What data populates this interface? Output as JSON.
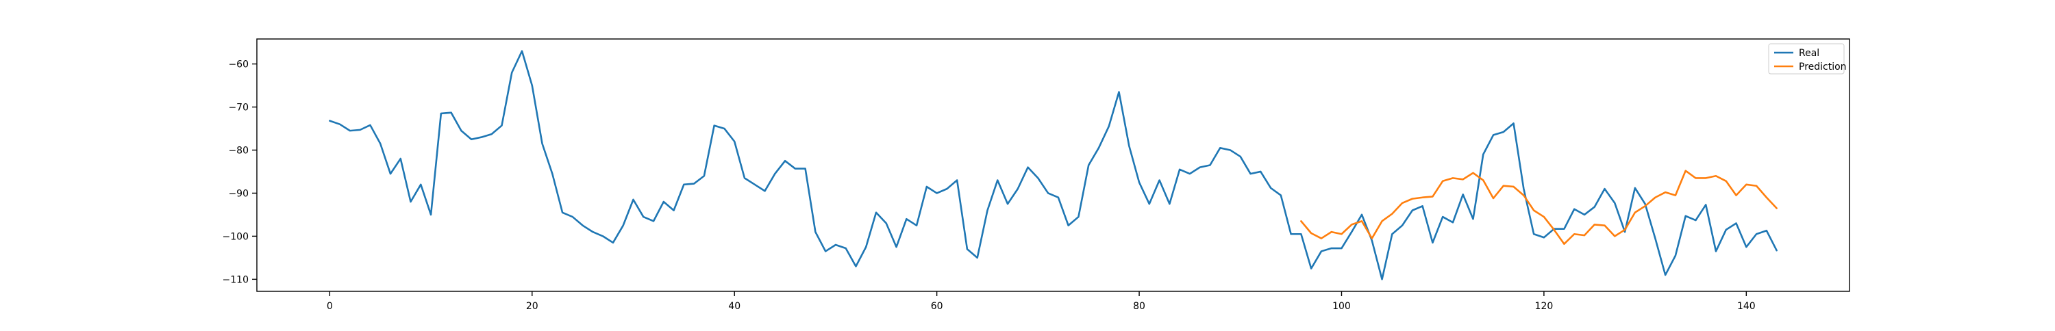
{
  "chart_data": {
    "type": "line",
    "title": "",
    "xlabel": "",
    "ylabel": "",
    "xlim": [
      -7.2,
      150.2
    ],
    "ylim": [
      -112.8,
      -54.2
    ],
    "xticks": [
      0,
      20,
      40,
      60,
      80,
      100,
      120,
      140
    ],
    "yticks": [
      -110,
      -100,
      -90,
      -80,
      -70,
      -60
    ],
    "xtick_labels": [
      "0",
      "20",
      "40",
      "60",
      "80",
      "100",
      "120",
      "140"
    ],
    "ytick_labels": [
      "−110",
      "−100",
      "−90",
      "−80",
      "−70",
      "−60"
    ],
    "grid": false,
    "legend_position": "top-right",
    "series": [
      {
        "name": "Real",
        "color": "#1f77b4",
        "x_start": 0,
        "values": [
          -73.2,
          -74.0,
          -75.5,
          -75.3,
          -74.2,
          -78.5,
          -85.5,
          -82.0,
          -92.0,
          -88.0,
          -95.0,
          -71.5,
          -71.3,
          -75.5,
          -77.5,
          -77.0,
          -76.3,
          -74.3,
          -62.0,
          -57.0,
          -65.0,
          -78.5,
          -85.5,
          -94.5,
          -95.5,
          -97.5,
          -99.0,
          -100.0,
          -101.5,
          -97.5,
          -91.5,
          -95.5,
          -96.5,
          -92.0,
          -94.0,
          -88.0,
          -87.8,
          -86.0,
          -74.3,
          -75.0,
          -78.0,
          -86.5,
          -88.0,
          -89.5,
          -85.5,
          -82.5,
          -84.3,
          -84.3,
          -99.0,
          -103.5,
          -102.0,
          -102.8,
          -107.0,
          -102.5,
          -94.5,
          -97.0,
          -102.5,
          -96.0,
          -97.5,
          -88.5,
          -90.0,
          -89.0,
          -87.0,
          -103.0,
          -105.0,
          -94.0,
          -87.0,
          -92.5,
          -89.0,
          -84.0,
          -86.5,
          -90.0,
          -91.0,
          -97.5,
          -95.5,
          -83.5,
          -79.5,
          -74.5,
          -66.5,
          -79.0,
          -87.5,
          -92.5,
          -87.0,
          -92.5,
          -84.5,
          -85.5,
          -84.0,
          -83.5,
          -79.5,
          -80.0,
          -81.5,
          -85.5,
          -85.0,
          -88.8,
          -90.5,
          -99.5,
          -99.5,
          -107.5,
          -103.5,
          -102.8,
          -102.8,
          -99.0,
          -95.0,
          -101.0,
          -110.0,
          -99.5,
          -97.5,
          -94.0,
          -93.0,
          -101.5,
          -95.5,
          -96.8,
          -90.3,
          -96.0,
          -81.0,
          -76.5,
          -75.8,
          -73.8,
          -89.0,
          -99.5,
          -100.3,
          -98.3,
          -98.3,
          -93.7,
          -95.0,
          -93.2,
          -89.0,
          -92.3,
          -99.0,
          -88.8,
          -92.5,
          -100.5,
          -109.0,
          -104.5,
          -95.3,
          -96.3,
          -92.7,
          -103.5,
          -98.5,
          -97.0,
          -102.5,
          -99.5,
          -98.7,
          -103.3
        ]
      },
      {
        "name": "Prediction",
        "color": "#ff7f0e",
        "x_start": 96,
        "values": [
          -96.5,
          -99.3,
          -100.5,
          -99.0,
          -99.5,
          -97.3,
          -96.5,
          -100.5,
          -96.5,
          -94.8,
          -92.3,
          -91.3,
          -91.0,
          -90.8,
          -87.2,
          -86.5,
          -86.8,
          -85.3,
          -87.0,
          -91.2,
          -88.3,
          -88.5,
          -90.5,
          -94.0,
          -95.5,
          -98.5,
          -101.8,
          -99.5,
          -99.8,
          -97.3,
          -97.5,
          -100.0,
          -98.5,
          -94.5,
          -93.0,
          -91.0,
          -89.8,
          -90.5,
          -84.8,
          -86.5,
          -86.5,
          -86.0,
          -87.2,
          -90.5,
          -88.0,
          -88.3,
          -91.0,
          -93.5
        ]
      }
    ]
  }
}
